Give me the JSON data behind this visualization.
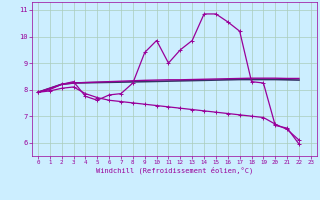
{
  "xlabel": "Windchill (Refroidissement éolien,°C)",
  "background_color": "#cceeff",
  "grid_color": "#aaccbb",
  "line_color": "#990099",
  "dark_line_color": "#333366",
  "xlim": [
    -0.5,
    23.5
  ],
  "ylim": [
    5.5,
    11.3
  ],
  "yticks": [
    6,
    7,
    8,
    9,
    10,
    11
  ],
  "xticks": [
    0,
    1,
    2,
    3,
    4,
    5,
    6,
    7,
    8,
    9,
    10,
    11,
    12,
    13,
    14,
    15,
    16,
    17,
    18,
    19,
    20,
    21,
    22,
    23
  ],
  "curve1_x": [
    0,
    1,
    2,
    3,
    4,
    5,
    6,
    7,
    8,
    9,
    10,
    11,
    12,
    13,
    14,
    15,
    16,
    17,
    18,
    19,
    20,
    21,
    22
  ],
  "curve1_y": [
    7.9,
    8.0,
    8.2,
    8.3,
    7.75,
    7.6,
    7.8,
    7.85,
    8.25,
    9.4,
    9.85,
    9.0,
    9.5,
    9.85,
    10.85,
    10.85,
    10.55,
    10.2,
    8.3,
    8.25,
    6.65,
    6.55,
    5.95
  ],
  "curve2_x": [
    0,
    2,
    3,
    9,
    10,
    11,
    12,
    13,
    14,
    15,
    16,
    17,
    18,
    19,
    20,
    21,
    22
  ],
  "curve2_y": [
    7.9,
    8.2,
    8.25,
    8.35,
    8.36,
    8.37,
    8.37,
    8.38,
    8.39,
    8.4,
    8.41,
    8.42,
    8.43,
    8.43,
    8.43,
    8.42,
    8.42
  ],
  "curve3_x": [
    0,
    2,
    3,
    9,
    10,
    11,
    12,
    13,
    14,
    15,
    16,
    17,
    18,
    19,
    20,
    21,
    22
  ],
  "curve3_y": [
    7.9,
    8.2,
    8.25,
    8.3,
    8.31,
    8.32,
    8.33,
    8.34,
    8.35,
    8.36,
    8.37,
    8.38,
    8.38,
    8.38,
    8.38,
    8.37,
    8.36
  ],
  "curve4_x": [
    0,
    1,
    2,
    3,
    4,
    5,
    6,
    7,
    8,
    9,
    10,
    11,
    12,
    13,
    14,
    15,
    16,
    17,
    18,
    19,
    20,
    21,
    22
  ],
  "curve4_y": [
    7.9,
    7.95,
    8.05,
    8.1,
    7.85,
    7.7,
    7.6,
    7.55,
    7.5,
    7.45,
    7.4,
    7.35,
    7.3,
    7.25,
    7.2,
    7.15,
    7.1,
    7.05,
    7.0,
    6.95,
    6.7,
    6.5,
    6.1
  ]
}
